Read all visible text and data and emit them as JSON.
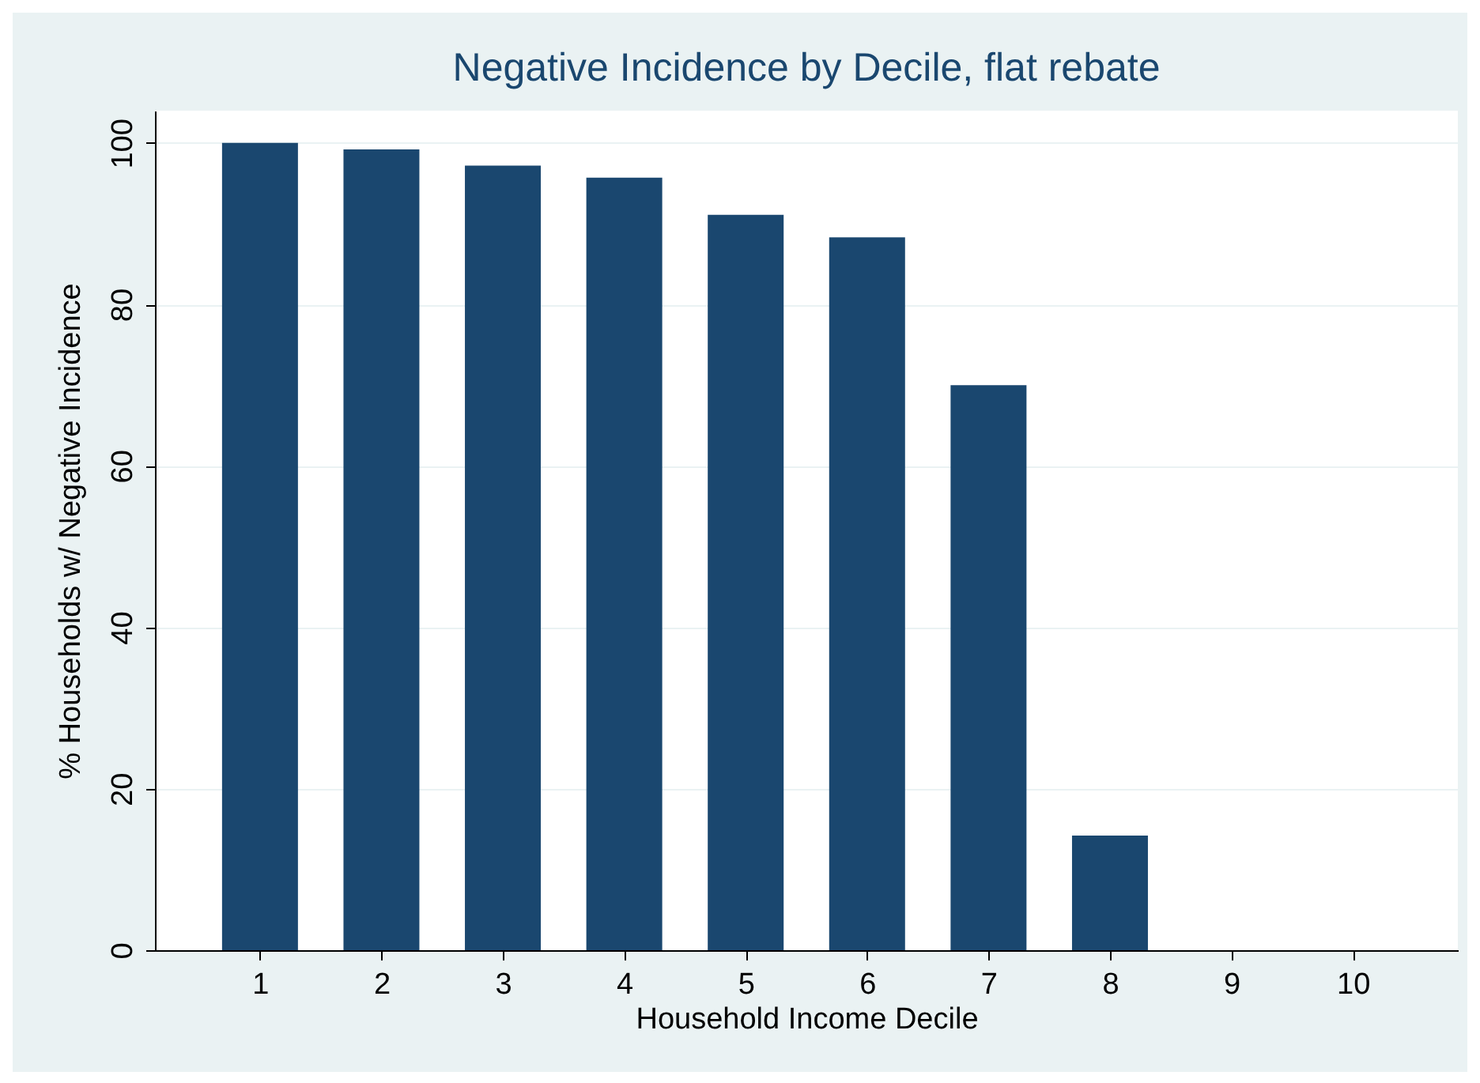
{
  "chart_data": {
    "type": "bar",
    "title": "Negative Incidence by Decile, flat rebate",
    "xlabel": "Household Income Decile",
    "ylabel": "% Households w/ Negative Incidence",
    "categories": [
      "1",
      "2",
      "3",
      "4",
      "5",
      "6",
      "7",
      "8",
      "9",
      "10"
    ],
    "values": [
      100,
      99.2,
      97.2,
      95.7,
      91.1,
      88.3,
      70.0,
      14.2,
      0,
      0
    ],
    "color": "#1a476f",
    "ylim": [
      0,
      104
    ],
    "yticks": [
      0,
      20,
      40,
      60,
      80,
      100
    ],
    "grid": "y"
  }
}
